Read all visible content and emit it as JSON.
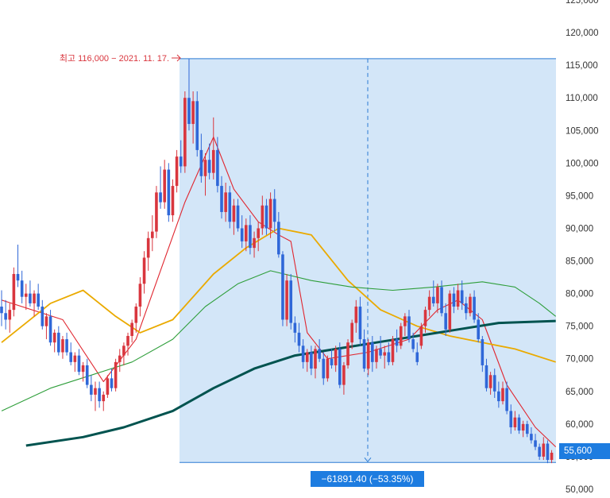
{
  "chart_data": {
    "type": "candlestick",
    "y_axis": {
      "ticks": [
        "125,000",
        "120,000",
        "115,000",
        "110,000",
        "105,000",
        "100,000",
        "95,000",
        "90,000",
        "85,000",
        "80,000",
        "75,000",
        "70,000",
        "65,000",
        "60,000",
        "55,000",
        "50,000"
      ],
      "ylim": [
        49000,
        126000
      ],
      "position": "right"
    },
    "high_marker": {
      "label": "최고 116,000 − 2021. 11. 17.",
      "value": 116000
    },
    "current_price": {
      "label": "55,600",
      "value": 55600
    },
    "measurement": {
      "label": "−61891.40 (−53.35%)",
      "from_value": 116000,
      "to_value": 54108.6
    },
    "candles": [
      [
        78000,
        80500,
        75000,
        77000
      ],
      [
        77000,
        79000,
        74500,
        76000
      ],
      [
        76000,
        78500,
        74000,
        77500
      ],
      [
        77500,
        84000,
        76500,
        83000
      ],
      [
        83000,
        87500,
        81000,
        82000
      ],
      [
        82000,
        83500,
        78500,
        79500
      ],
      [
        79500,
        81500,
        77500,
        80000
      ],
      [
        80000,
        82000,
        78000,
        78500
      ],
      [
        78500,
        80500,
        76500,
        80000
      ],
      [
        80000,
        81500,
        77500,
        78000
      ],
      [
        78000,
        79000,
        74500,
        75000
      ],
      [
        75000,
        77000,
        73000,
        76500
      ],
      [
        76500,
        77500,
        72000,
        72500
      ],
      [
        72500,
        74500,
        71000,
        74000
      ],
      [
        74000,
        75000,
        70500,
        71000
      ],
      [
        71000,
        73500,
        70000,
        73000
      ],
      [
        73000,
        74000,
        70500,
        71000
      ],
      [
        71000,
        72500,
        69000,
        69500
      ],
      [
        69500,
        71000,
        68000,
        70500
      ],
      [
        70500,
        71500,
        67500,
        68000
      ],
      [
        68000,
        69500,
        66500,
        69000
      ],
      [
        69000,
        70000,
        65500,
        66000
      ],
      [
        66000,
        67500,
        63500,
        64500
      ],
      [
        64500,
        66500,
        62000,
        65500
      ],
      [
        65500,
        66500,
        62500,
        63500
      ],
      [
        63500,
        65000,
        62000,
        64500
      ],
      [
        64500,
        67500,
        64000,
        67000
      ],
      [
        67000,
        68500,
        65000,
        65500
      ],
      [
        65500,
        70000,
        65000,
        69500
      ],
      [
        69500,
        71500,
        68000,
        70500
      ],
      [
        70500,
        72500,
        69000,
        72000
      ],
      [
        72000,
        74000,
        70500,
        73500
      ],
      [
        73500,
        76000,
        72500,
        75500
      ],
      [
        75500,
        78500,
        74000,
        78000
      ],
      [
        78000,
        82500,
        76500,
        81500
      ],
      [
        81500,
        86500,
        80000,
        85500
      ],
      [
        85500,
        89500,
        83500,
        88500
      ],
      [
        88500,
        92000,
        86500,
        89500
      ],
      [
        89500,
        96500,
        88500,
        95500
      ],
      [
        95500,
        99500,
        93000,
        94000
      ],
      [
        94000,
        100500,
        93000,
        99000
      ],
      [
        99000,
        100000,
        91000,
        92000
      ],
      [
        92000,
        97500,
        91000,
        96500
      ],
      [
        96500,
        102000,
        95500,
        101000
      ],
      [
        101000,
        103500,
        98500,
        99500
      ],
      [
        99500,
        111000,
        98500,
        110000
      ],
      [
        110000,
        116000,
        105000,
        106000
      ],
      [
        106000,
        111000,
        103000,
        109500
      ],
      [
        109500,
        111000,
        101000,
        102000
      ],
      [
        102000,
        104500,
        97000,
        98000
      ],
      [
        98000,
        101500,
        95000,
        100500
      ],
      [
        100500,
        103000,
        97500,
        98500
      ],
      [
        98500,
        107000,
        97500,
        102000
      ],
      [
        102000,
        104000,
        95500,
        96500
      ],
      [
        96500,
        98000,
        91500,
        92500
      ],
      [
        92500,
        97000,
        91000,
        95500
      ],
      [
        95500,
        96500,
        90000,
        91000
      ],
      [
        91000,
        94500,
        89000,
        93500
      ],
      [
        93500,
        94500,
        89500,
        90000
      ],
      [
        90000,
        92000,
        87000,
        88000
      ],
      [
        88000,
        91500,
        86500,
        90500
      ],
      [
        90500,
        92000,
        86000,
        87000
      ],
      [
        87000,
        89500,
        85500,
        88500
      ],
      [
        88500,
        91000,
        86500,
        90000
      ],
      [
        90000,
        95000,
        89000,
        93500
      ],
      [
        93500,
        94500,
        89000,
        90000
      ],
      [
        90000,
        95500,
        88500,
        94500
      ],
      [
        94500,
        96000,
        89500,
        91000
      ],
      [
        91000,
        92500,
        85500,
        86000
      ],
      [
        86000,
        86500,
        75000,
        76000
      ],
      [
        76000,
        83000,
        75000,
        82000
      ],
      [
        82000,
        83000,
        74500,
        75500
      ],
      [
        75500,
        76500,
        72500,
        74000
      ],
      [
        74000,
        75500,
        71000,
        72000
      ],
      [
        72000,
        73000,
        68500,
        69500
      ],
      [
        69500,
        71500,
        68000,
        71000
      ],
      [
        71000,
        72000,
        67500,
        68500
      ],
      [
        68500,
        72000,
        67000,
        71500
      ],
      [
        71500,
        73000,
        69500,
        70000
      ],
      [
        70000,
        71000,
        66000,
        67000
      ],
      [
        67000,
        70500,
        66500,
        70000
      ],
      [
        70000,
        71500,
        68500,
        69000
      ],
      [
        69000,
        72000,
        68000,
        71500
      ],
      [
        71500,
        72500,
        65500,
        66000
      ],
      [
        66000,
        69500,
        64500,
        69000
      ],
      [
        69000,
        73000,
        68500,
        72500
      ],
      [
        72500,
        76000,
        71500,
        75500
      ],
      [
        75500,
        79000,
        74000,
        78000
      ],
      [
        78000,
        79500,
        72000,
        73000
      ],
      [
        73000,
        74500,
        68000,
        68500
      ],
      [
        68500,
        73000,
        67500,
        72500
      ],
      [
        72500,
        73500,
        68000,
        69500
      ],
      [
        69500,
        72000,
        68500,
        71500
      ],
      [
        71500,
        73500,
        70000,
        70500
      ],
      [
        70500,
        72000,
        68500,
        71000
      ],
      [
        71000,
        72500,
        69000,
        69500
      ],
      [
        69500,
        73500,
        69000,
        73000
      ],
      [
        73000,
        74500,
        71000,
        72000
      ],
      [
        72000,
        75500,
        71500,
        75000
      ],
      [
        75000,
        77000,
        73500,
        76500
      ],
      [
        76500,
        77500,
        72500,
        73000
      ],
      [
        73000,
        74000,
        71000,
        71500
      ],
      [
        71000,
        72500,
        69000,
        69500
      ],
      [
        72000,
        75500,
        71500,
        75000
      ],
      [
        75000,
        78000,
        74000,
        77500
      ],
      [
        77500,
        80500,
        76500,
        79500
      ],
      [
        79500,
        82000,
        78000,
        78500
      ],
      [
        78500,
        81500,
        77000,
        81000
      ],
      [
        81000,
        82000,
        76500,
        77000
      ],
      [
        77000,
        78500,
        73500,
        74500
      ],
      [
        74500,
        80500,
        74000,
        80000
      ],
      [
        80000,
        81000,
        77000,
        78000
      ],
      [
        78000,
        81500,
        77500,
        80500
      ],
      [
        80500,
        82000,
        77500,
        78500
      ],
      [
        78500,
        79500,
        76000,
        77000
      ],
      [
        77000,
        80000,
        76500,
        79500
      ],
      [
        79500,
        80500,
        75500,
        76000
      ],
      [
        76000,
        77000,
        72500,
        73000
      ],
      [
        73000,
        73500,
        68000,
        69000
      ],
      [
        69000,
        70000,
        65000,
        65500
      ],
      [
        65500,
        68000,
        64500,
        67500
      ],
      [
        67500,
        68500,
        64000,
        65000
      ],
      [
        65000,
        66500,
        62500,
        63500
      ],
      [
        63500,
        66500,
        63000,
        65500
      ],
      [
        65500,
        66500,
        61500,
        62000
      ],
      [
        62000,
        63000,
        58500,
        59500
      ],
      [
        59500,
        62000,
        59000,
        61000
      ],
      [
        61000,
        61500,
        58500,
        59000
      ],
      [
        59000,
        60500,
        58000,
        60000
      ],
      [
        60000,
        60500,
        58000,
        58500
      ],
      [
        58500,
        59500,
        57000,
        57500
      ],
      [
        57500,
        58500,
        56000,
        56500
      ],
      [
        56500,
        57000,
        54500,
        55000
      ],
      [
        55000,
        58000,
        54500,
        57000
      ],
      [
        57000,
        57500,
        54000,
        54500
      ],
      [
        54500,
        56000,
        54000,
        55600
      ]
    ],
    "moving_averages": [
      {
        "color": "#e0262f",
        "values": [
          [
            0,
            79000
          ],
          [
            15,
            76000
          ],
          [
            25,
            66500
          ],
          [
            33,
            73000
          ],
          [
            45,
            94000
          ],
          [
            52,
            104000
          ],
          [
            57,
            96000
          ],
          [
            63,
            91000
          ],
          [
            68,
            89000
          ],
          [
            71,
            88000
          ],
          [
            75,
            74000
          ],
          [
            80,
            70000
          ],
          [
            90,
            71000
          ],
          [
            100,
            73000
          ],
          [
            107,
            77500
          ],
          [
            112,
            79000
          ],
          [
            118,
            76000
          ],
          [
            124,
            66000
          ],
          [
            131,
            59500
          ],
          [
            136,
            56500
          ]
        ]
      },
      {
        "color": "#eaaa00",
        "values": [
          [
            0,
            72500
          ],
          [
            12,
            78500
          ],
          [
            20,
            80500
          ],
          [
            28,
            76500
          ],
          [
            34,
            74000
          ],
          [
            42,
            76000
          ],
          [
            52,
            83000
          ],
          [
            60,
            87000
          ],
          [
            68,
            90000
          ],
          [
            76,
            89000
          ],
          [
            85,
            82000
          ],
          [
            93,
            77500
          ],
          [
            102,
            75000
          ],
          [
            110,
            73500
          ],
          [
            118,
            72500
          ],
          [
            126,
            71500
          ],
          [
            136,
            69500
          ]
        ]
      },
      {
        "color": "#2e9e3a",
        "values": [
          [
            0,
            62000
          ],
          [
            12,
            65500
          ],
          [
            22,
            67500
          ],
          [
            32,
            69500
          ],
          [
            42,
            73000
          ],
          [
            50,
            78000
          ],
          [
            58,
            81500
          ],
          [
            66,
            83500
          ],
          [
            76,
            82000
          ],
          [
            86,
            81000
          ],
          [
            96,
            80500
          ],
          [
            106,
            81000
          ],
          [
            118,
            81800
          ],
          [
            126,
            81000
          ],
          [
            132,
            78500
          ],
          [
            136,
            76500
          ]
        ]
      },
      {
        "color": "#00534f",
        "width": 3,
        "values": [
          [
            6,
            56700
          ],
          [
            20,
            58000
          ],
          [
            30,
            59500
          ],
          [
            42,
            62000
          ],
          [
            52,
            65500
          ],
          [
            62,
            68500
          ],
          [
            72,
            70500
          ],
          [
            82,
            71500
          ],
          [
            92,
            72500
          ],
          [
            102,
            73500
          ],
          [
            112,
            74500
          ],
          [
            122,
            75500
          ],
          [
            136,
            75800
          ]
        ]
      }
    ]
  },
  "colors": {
    "up": "#d9363e",
    "down": "#2f67d8",
    "selection": "#d3e6f8",
    "selection_border": "#2b7bd4",
    "accent": "#1d7ce0"
  }
}
